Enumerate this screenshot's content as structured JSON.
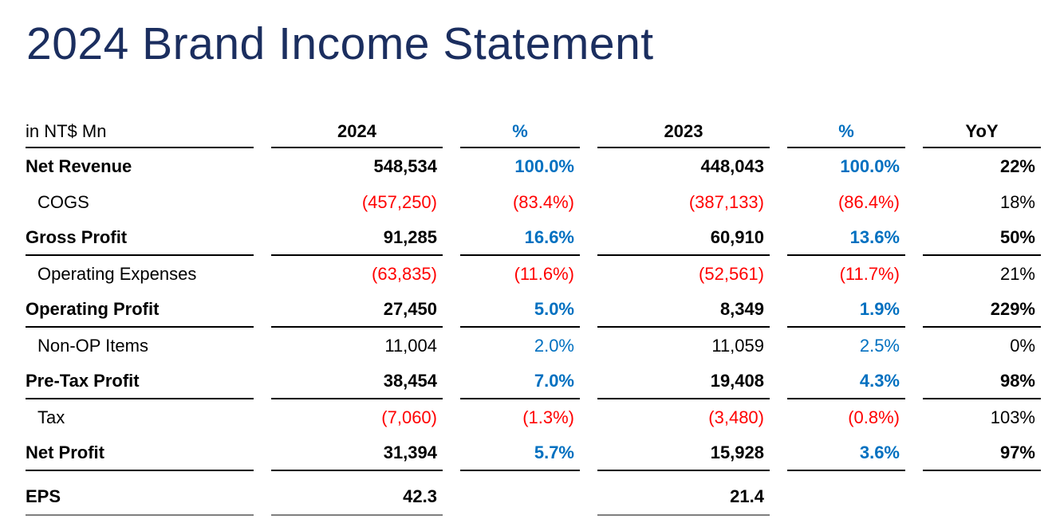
{
  "title": "2024 Brand Income Statement",
  "colors": {
    "title_navy": "#1b2e5f",
    "accent_blue": "#0070c0",
    "negative_red": "#ff0000",
    "text_black": "#000000",
    "eps_rule_gray": "#7f7f7f"
  },
  "table": {
    "unit_label": "in NT$ Mn",
    "columns": [
      "2024",
      "%",
      "2023",
      "%",
      "YoY"
    ],
    "rows": [
      {
        "label": "Net Revenue",
        "v2024": "548,534",
        "p2024": "100.0%",
        "v2023": "448,043",
        "p2023": "100.0%",
        "yoy": "22%"
      },
      {
        "label": "COGS",
        "v2024": "(457,250)",
        "p2024": "(83.4%)",
        "v2023": "(387,133)",
        "p2023": "(86.4%)",
        "yoy": "18%"
      },
      {
        "label": "Gross Profit",
        "v2024": "91,285",
        "p2024": "16.6%",
        "v2023": "60,910",
        "p2023": "13.6%",
        "yoy": "50%"
      },
      {
        "label": "Operating Expenses",
        "v2024": "(63,835)",
        "p2024": "(11.6%)",
        "v2023": "(52,561)",
        "p2023": "(11.7%)",
        "yoy": "21%"
      },
      {
        "label": "Operating Profit",
        "v2024": "27,450",
        "p2024": "5.0%",
        "v2023": "8,349",
        "p2023": "1.9%",
        "yoy": "229%"
      },
      {
        "label": "Non-OP Items",
        "v2024": "11,004",
        "p2024": "2.0%",
        "v2023": "11,059",
        "p2023": "2.5%",
        "yoy": "0%"
      },
      {
        "label": "Pre-Tax Profit",
        "v2024": "38,454",
        "p2024": "7.0%",
        "v2023": "19,408",
        "p2023": "4.3%",
        "yoy": "98%"
      },
      {
        "label": "Tax",
        "v2024": "(7,060)",
        "p2024": "(1.3%)",
        "v2023": "(3,480)",
        "p2023": "(0.8%)",
        "yoy": "103%"
      },
      {
        "label": "Net Profit",
        "v2024": "31,394",
        "p2024": "5.7%",
        "v2023": "15,928",
        "p2023": "3.6%",
        "yoy": "97%"
      },
      {
        "label": "EPS",
        "v2024": "42.3",
        "p2024": "",
        "v2023": "21.4",
        "p2023": "",
        "yoy": ""
      }
    ]
  }
}
